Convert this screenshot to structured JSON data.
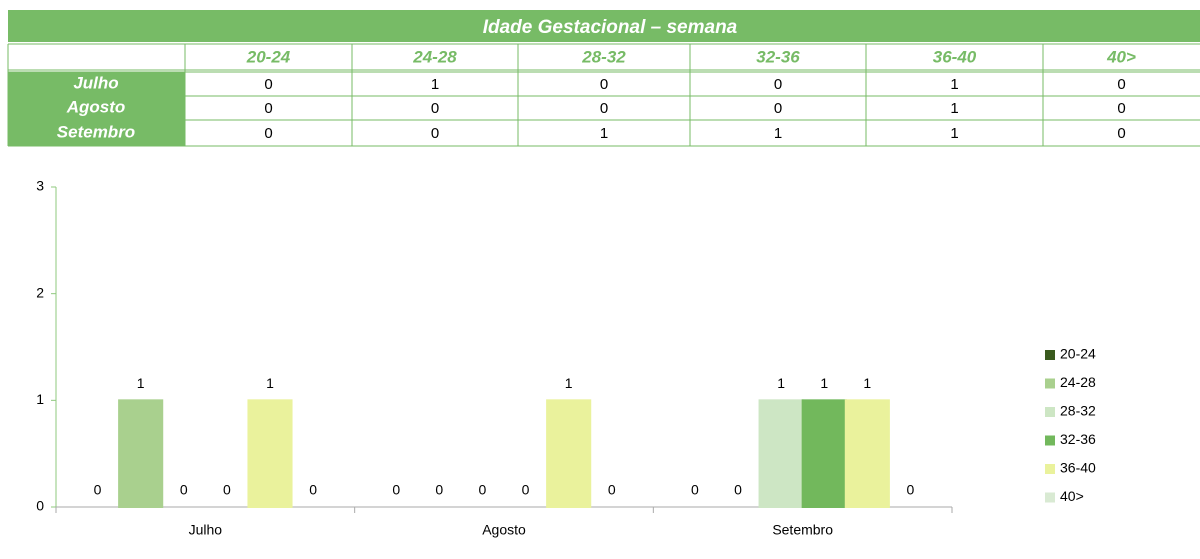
{
  "table_title": "Idade Gestacional – semana",
  "chart_data": {
    "type": "bar",
    "categories": [
      "Julho",
      "Agosto",
      "Setembro"
    ],
    "series": [
      {
        "name": "20-24",
        "color": "#3a5a1e",
        "values": [
          0,
          0,
          0
        ]
      },
      {
        "name": "24-28",
        "color": "#a9d08e",
        "values": [
          1,
          0,
          0
        ]
      },
      {
        "name": "28-32",
        "color": "#cde6c4",
        "values": [
          0,
          0,
          1
        ]
      },
      {
        "name": "32-36",
        "color": "#72b85c",
        "values": [
          0,
          0,
          1
        ]
      },
      {
        "name": "36-40",
        "color": "#eaf29c",
        "values": [
          1,
          1,
          1
        ]
      },
      {
        "name": "40>",
        "color": "#d9ead3",
        "values": [
          0,
          0,
          0
        ]
      }
    ],
    "ylim": [
      0,
      3
    ],
    "yticks": [
      0,
      1,
      2,
      3
    ],
    "legend": "right"
  }
}
